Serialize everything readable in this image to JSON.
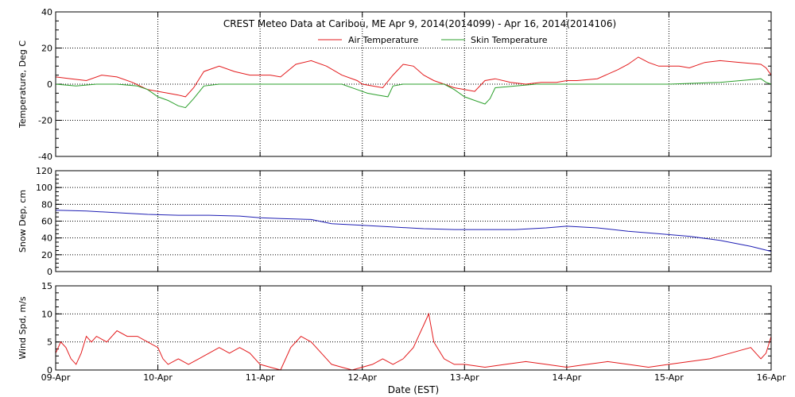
{
  "title": "CREST Meteo Data at Caribou, ME   Apr  9, 2014(2014099) - Apr 16, 2014(2014106)",
  "x_axis_label": "Date (EST)",
  "x_tick_labels": [
    "09-Apr",
    "10-Apr",
    "11-Apr",
    "12-Apr",
    "13-Apr",
    "14-Apr",
    "15-Apr",
    "16-Apr"
  ],
  "colors": {
    "air": "#e31a1c",
    "skin": "#2ca02c",
    "snow": "#1f1fb4",
    "wind": "#e31a1c",
    "grid": "#000000"
  },
  "chart_data": [
    {
      "type": "line",
      "ylabel": "Temperature, Deg C",
      "ylim": [
        -40,
        40
      ],
      "yticks": [
        -40,
        -20,
        0,
        20,
        40
      ],
      "xlim": [
        0,
        7
      ],
      "grid": true,
      "legend_position": "top-center",
      "series": [
        {
          "name": "Air Temperature",
          "x": [
            0,
            0.15,
            0.3,
            0.45,
            0.6,
            0.75,
            0.9,
            1.0,
            1.1,
            1.2,
            1.27,
            1.35,
            1.45,
            1.6,
            1.75,
            1.9,
            2.0,
            2.1,
            2.2,
            2.35,
            2.5,
            2.65,
            2.8,
            2.95,
            3.0,
            3.1,
            3.2,
            3.3,
            3.4,
            3.5,
            3.6,
            3.7,
            3.8,
            3.9,
            4.0,
            4.1,
            4.2,
            4.3,
            4.45,
            4.6,
            4.75,
            4.9,
            5.0,
            5.1,
            5.3,
            5.5,
            5.6,
            5.7,
            5.8,
            5.9,
            6.0,
            6.1,
            6.2,
            6.35,
            6.5,
            6.7,
            6.9,
            6.95,
            7.0
          ],
          "y": [
            4,
            3,
            2,
            5,
            4,
            1,
            -3,
            -4,
            -5,
            -6,
            -7,
            -2,
            7,
            10,
            7,
            5,
            5,
            5,
            4,
            11,
            13,
            10,
            5,
            2,
            0,
            -1,
            -2,
            5,
            11,
            10,
            5,
            2,
            0,
            -2,
            -3,
            -4,
            2,
            3,
            1,
            0,
            1,
            1,
            2,
            2,
            3,
            8,
            11,
            15,
            12,
            10,
            10,
            10,
            9,
            12,
            13,
            12,
            11,
            9,
            5
          ]
        },
        {
          "name": "Skin Temperature",
          "x": [
            0,
            0.2,
            0.4,
            0.6,
            0.8,
            0.9,
            1.0,
            1.1,
            1.2,
            1.27,
            1.35,
            1.45,
            1.6,
            1.8,
            2.0,
            2.2,
            2.4,
            2.6,
            2.8,
            2.95,
            3.05,
            3.15,
            3.25,
            3.3,
            3.4,
            3.6,
            3.8,
            3.9,
            4.0,
            4.1,
            4.2,
            4.25,
            4.3,
            4.5,
            4.7,
            5.0,
            5.5,
            6.0,
            6.5,
            6.7,
            6.9,
            6.95,
            7.0
          ],
          "y": [
            0,
            -1,
            0,
            0,
            -1,
            -3,
            -7,
            -9,
            -12,
            -13,
            -8,
            -1,
            0,
            0,
            0,
            0,
            0,
            0,
            0,
            -3,
            -5,
            -6,
            -7,
            -1,
            0,
            0,
            0,
            -3,
            -7,
            -9,
            -11,
            -8,
            -2,
            -1,
            0,
            0,
            0,
            0,
            1,
            2,
            3,
            1,
            0
          ]
        }
      ]
    },
    {
      "type": "line",
      "ylabel": "Snow Dep, cm",
      "ylim": [
        0,
        120
      ],
      "yticks": [
        0,
        20,
        40,
        60,
        80,
        100,
        120
      ],
      "xlim": [
        0,
        7
      ],
      "grid": true,
      "series": [
        {
          "x": [
            0,
            0.3,
            0.6,
            0.9,
            1.2,
            1.5,
            1.8,
            2.0,
            2.2,
            2.5,
            2.7,
            3.0,
            3.3,
            3.6,
            3.9,
            4.2,
            4.5,
            4.8,
            5.0,
            5.3,
            5.6,
            5.9,
            6.2,
            6.5,
            6.8,
            7.0
          ],
          "y": [
            73,
            72,
            70,
            68,
            67,
            67,
            66,
            64,
            63,
            62,
            57,
            55,
            53,
            51,
            50,
            50,
            50,
            52,
            54,
            52,
            48,
            45,
            42,
            37,
            30,
            24
          ]
        }
      ]
    },
    {
      "type": "line",
      "ylabel": "Wind Spd, m/s",
      "ylim": [
        0,
        15
      ],
      "yticks": [
        0,
        5,
        10,
        15
      ],
      "xlim": [
        0,
        7
      ],
      "grid": true,
      "series": [
        {
          "x": [
            0,
            0.05,
            0.1,
            0.15,
            0.2,
            0.25,
            0.3,
            0.35,
            0.4,
            0.5,
            0.6,
            0.7,
            0.8,
            0.9,
            1.0,
            1.05,
            1.1,
            1.2,
            1.3,
            1.4,
            1.5,
            1.6,
            1.7,
            1.8,
            1.9,
            2.0,
            2.1,
            2.2,
            2.3,
            2.4,
            2.5,
            2.6,
            2.7,
            2.8,
            2.9,
            3.0,
            3.1,
            3.2,
            3.3,
            3.4,
            3.5,
            3.55,
            3.6,
            3.65,
            3.7,
            3.8,
            3.9,
            4.0,
            4.2,
            4.4,
            4.6,
            4.8,
            5.0,
            5.2,
            5.4,
            5.6,
            5.8,
            6.0,
            6.2,
            6.4,
            6.6,
            6.8,
            6.9,
            6.95,
            7.0
          ],
          "y": [
            3,
            5,
            4,
            2,
            1,
            3,
            6,
            5,
            6,
            5,
            7,
            6,
            6,
            5,
            4,
            2,
            1,
            2,
            1,
            2,
            3,
            4,
            3,
            4,
            3,
            1,
            0.5,
            0,
            4,
            6,
            5,
            3,
            1,
            0.5,
            0,
            0.5,
            1,
            2,
            1,
            2,
            4,
            6,
            8,
            10,
            5,
            2,
            1,
            1,
            0.5,
            1,
            1.5,
            1,
            0.5,
            1,
            1.5,
            1,
            0.5,
            1,
            1.5,
            2,
            3,
            4,
            2,
            3,
            6
          ]
        }
      ]
    }
  ]
}
